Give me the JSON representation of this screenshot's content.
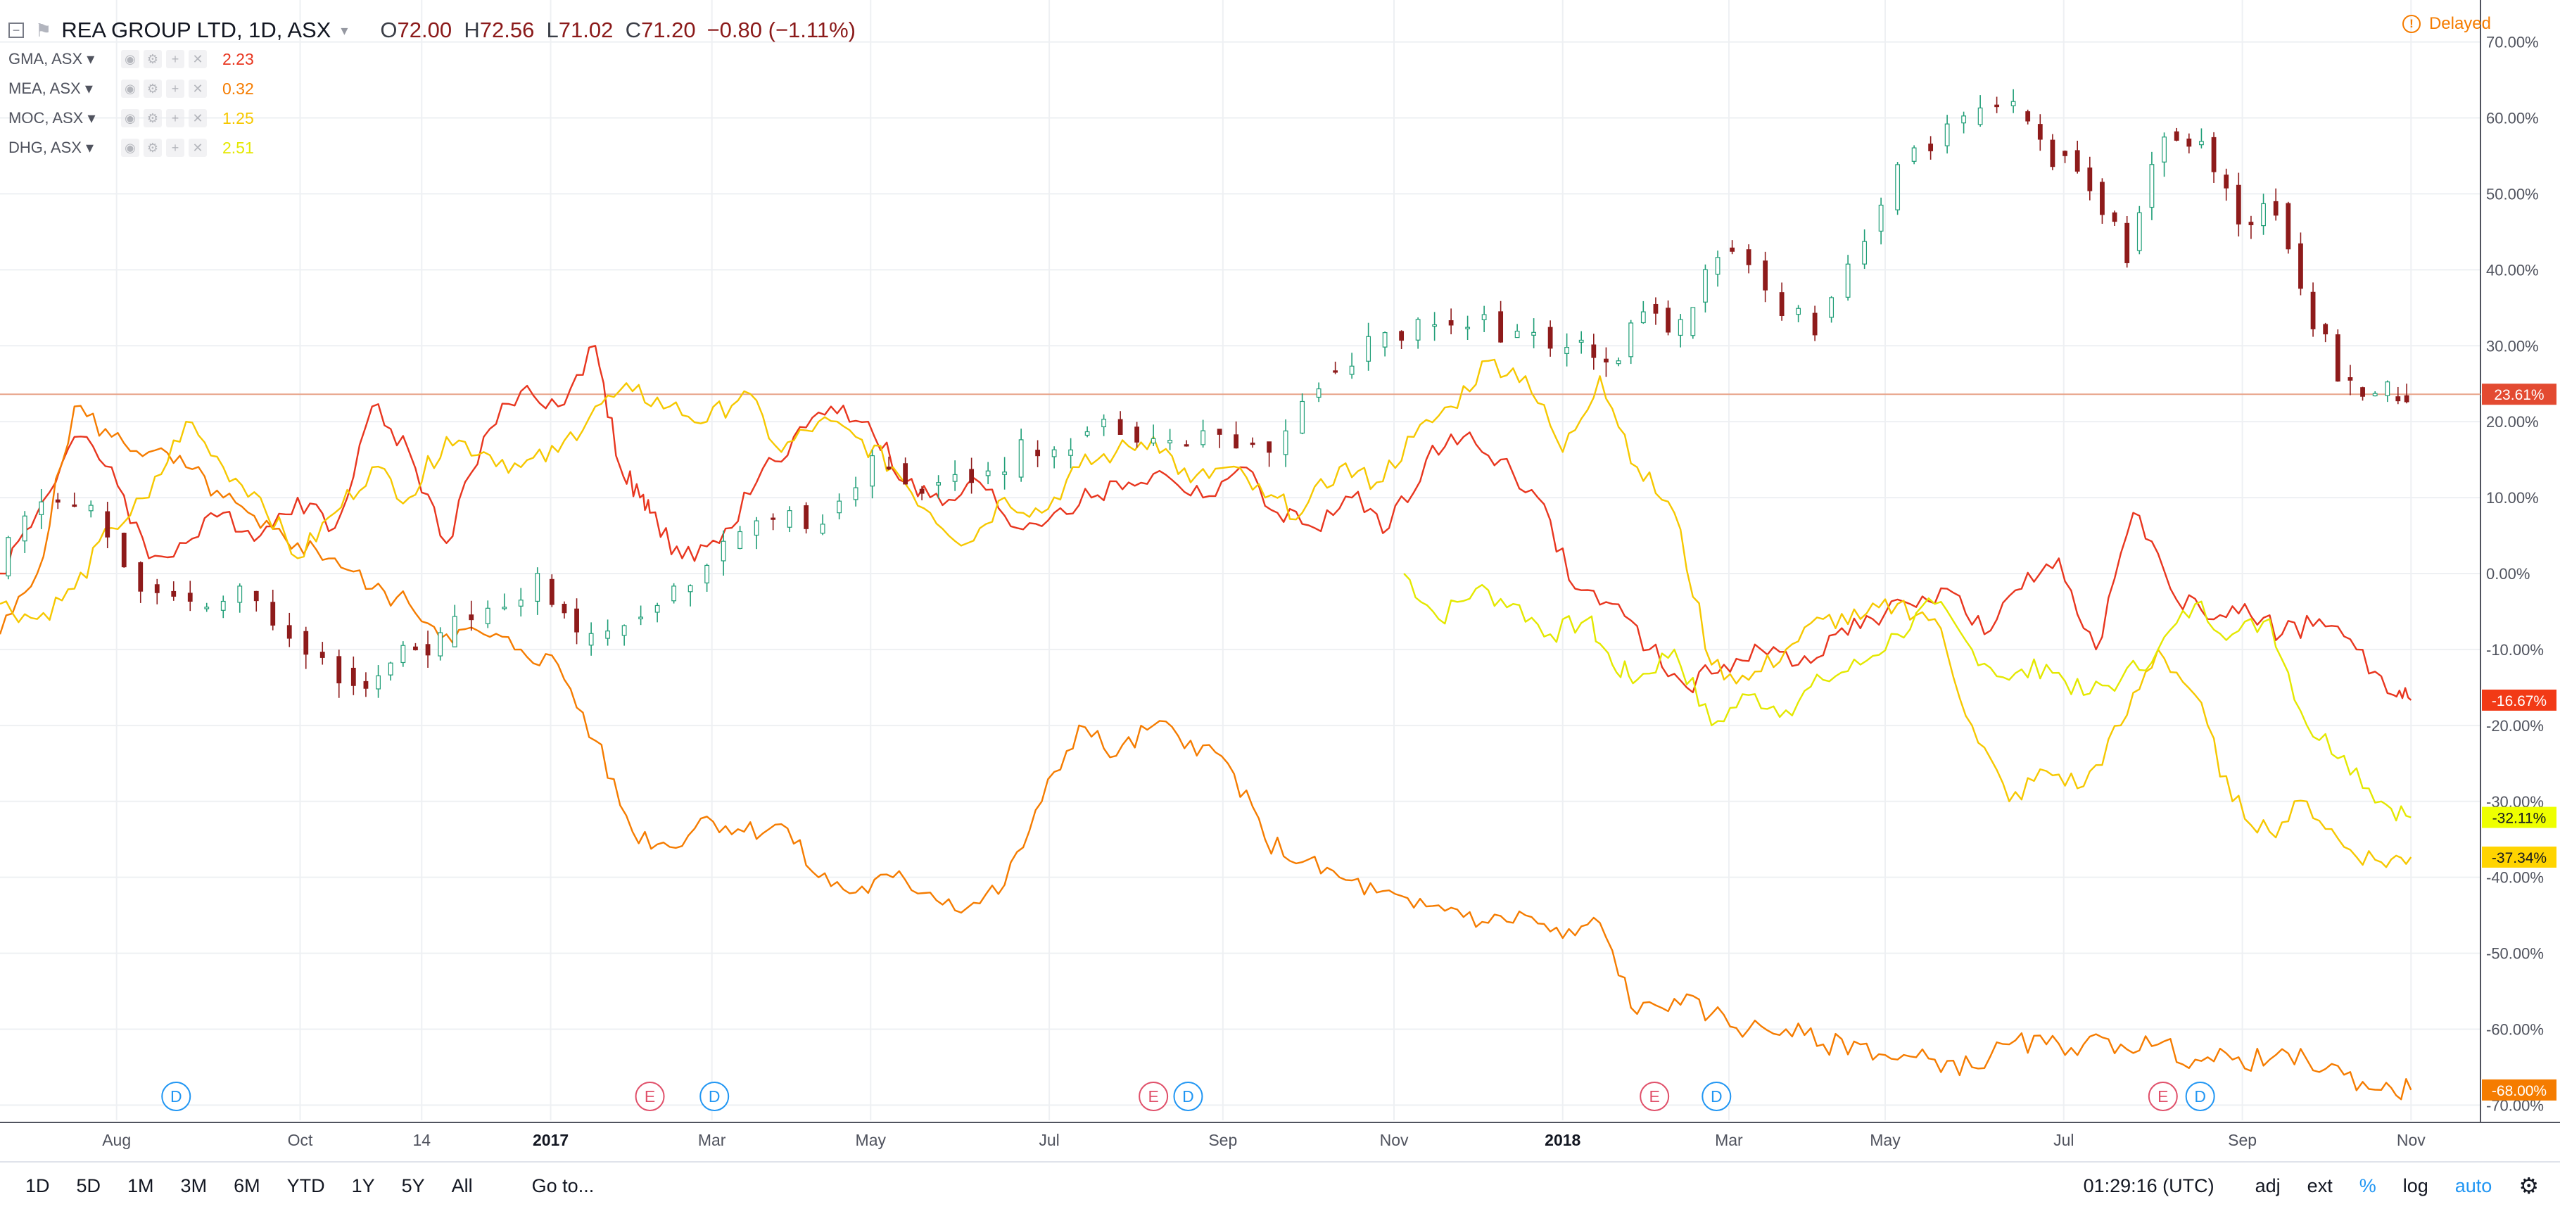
{
  "header": {
    "symbol": "REA GROUP LTD, 1D, ASX",
    "ohlc": {
      "o_label": "O",
      "o": "72.00",
      "h_label": "H",
      "h": "72.56",
      "l_label": "L",
      "l": "71.02",
      "c_label": "C",
      "c": "71.20"
    },
    "change": "−0.80 (−1.11%)",
    "delayed": "Delayed"
  },
  "legend": [
    {
      "symbol": "GMA, ASX",
      "value": "2.23",
      "color": "#e8361f"
    },
    {
      "symbol": "MEA, ASX",
      "value": "0.32",
      "color": "#f57c00"
    },
    {
      "symbol": "MOC, ASX",
      "value": "1.25",
      "color": "#f6c800"
    },
    {
      "symbol": "DHG, ASX",
      "value": "2.51",
      "color": "#e4e800"
    }
  ],
  "price_badges": [
    {
      "label": "23.61%",
      "value": 23.61,
      "bg": "#e34a31",
      "fg": "#ffffff"
    },
    {
      "label": "-16.67%",
      "value": -16.67,
      "bg": "#f23a16",
      "fg": "#ffffff"
    },
    {
      "label": "-32.11%",
      "value": -32.11,
      "bg": "#eeff00",
      "fg": "#131722"
    },
    {
      "label": "-37.34%",
      "value": -37.34,
      "bg": "#ffd400",
      "fg": "#131722"
    },
    {
      "label": "-68.00%",
      "value": -68.0,
      "bg": "#f57c00",
      "fg": "#ffffff"
    }
  ],
  "events": [
    {
      "t": 0.071,
      "letter": "D",
      "color": "#2196f3"
    },
    {
      "t": 0.262,
      "letter": "E",
      "color": "#e0506a"
    },
    {
      "t": 0.288,
      "letter": "D",
      "color": "#2196f3"
    },
    {
      "t": 0.465,
      "letter": "E",
      "color": "#e0506a"
    },
    {
      "t": 0.479,
      "letter": "D",
      "color": "#2196f3"
    },
    {
      "t": 0.667,
      "letter": "E",
      "color": "#e0506a"
    },
    {
      "t": 0.692,
      "letter": "D",
      "color": "#2196f3"
    },
    {
      "t": 0.872,
      "letter": "E",
      "color": "#e0506a"
    },
    {
      "t": 0.887,
      "letter": "D",
      "color": "#2196f3"
    }
  ],
  "bottom_bar": {
    "ranges": [
      "1D",
      "5D",
      "1M",
      "3M",
      "6M",
      "YTD",
      "1Y",
      "5Y",
      "All"
    ],
    "goto": "Go to...",
    "clock": "01:29:16 (UTC)",
    "adj": "adj",
    "ext": "ext",
    "percent": "%",
    "log": "log",
    "auto": "auto"
  },
  "chart_data": {
    "type": "line",
    "title": "REA GROUP LTD, 1D, ASX",
    "y_unit": "%",
    "ylim": [
      -72,
      72
    ],
    "y_ticks": [
      "70.00%",
      "60.00%",
      "50.00%",
      "40.00%",
      "30.00%",
      "20.00%",
      "10.00%",
      "0.00%",
      "-10.00%",
      "-20.00%",
      "-30.00%",
      "-40.00%",
      "-50.00%",
      "-60.00%",
      "-70.00%"
    ],
    "x_ticks": [
      {
        "label": "Aug",
        "t": 0.047,
        "bold": false
      },
      {
        "label": "Oct",
        "t": 0.121,
        "bold": false
      },
      {
        "label": "14",
        "t": 0.17,
        "bold": false
      },
      {
        "label": "2017",
        "t": 0.222,
        "bold": true
      },
      {
        "label": "Mar",
        "t": 0.287,
        "bold": false
      },
      {
        "label": "May",
        "t": 0.351,
        "bold": false
      },
      {
        "label": "Jul",
        "t": 0.423,
        "bold": false
      },
      {
        "label": "Sep",
        "t": 0.493,
        "bold": false
      },
      {
        "label": "Nov",
        "t": 0.562,
        "bold": false
      },
      {
        "label": "2018",
        "t": 0.63,
        "bold": true
      },
      {
        "label": "Mar",
        "t": 0.697,
        "bold": false
      },
      {
        "label": "May",
        "t": 0.76,
        "bold": false
      },
      {
        "label": "Jul",
        "t": 0.832,
        "bold": false
      },
      {
        "label": "Sep",
        "t": 0.904,
        "bold": false
      },
      {
        "label": "Nov",
        "t": 0.972,
        "bold": false
      }
    ],
    "series": [
      {
        "name": "REA GROUP LTD",
        "type": "candlestick",
        "up_color": "#1f9e77",
        "down_color": "#8e1b1b",
        "t": [
          0.0,
          0.02,
          0.04,
          0.06,
          0.08,
          0.1,
          0.12,
          0.14,
          0.155,
          0.165,
          0.18,
          0.2,
          0.22,
          0.235,
          0.255,
          0.275,
          0.295,
          0.315,
          0.335,
          0.355,
          0.375,
          0.395,
          0.415,
          0.435,
          0.455,
          0.475,
          0.495,
          0.515,
          0.535,
          0.555,
          0.575,
          0.595,
          0.615,
          0.635,
          0.65,
          0.665,
          0.68,
          0.695,
          0.715,
          0.735,
          0.755,
          0.775,
          0.795,
          0.815,
          0.83,
          0.845,
          0.86,
          0.875,
          0.89,
          0.905,
          0.92,
          0.935,
          0.95,
          0.965,
          0.972
        ],
        "values": [
          0,
          10,
          8,
          -2,
          -5,
          -3,
          -7,
          -13,
          -14,
          -10,
          -9,
          -4,
          -1,
          -9,
          -6,
          -2,
          4,
          6,
          8,
          14,
          12,
          13,
          16,
          18,
          20,
          17,
          18,
          16,
          26,
          30,
          33,
          34,
          31,
          30,
          27,
          35,
          32,
          43,
          37,
          33,
          45,
          56,
          59,
          61,
          55,
          51,
          42,
          58,
          57,
          47,
          48,
          33,
          24,
          24,
          23.61
        ]
      },
      {
        "name": "GMA, ASX",
        "type": "line",
        "color": "#e8361f",
        "t": [
          0.0,
          0.015,
          0.03,
          0.045,
          0.06,
          0.075,
          0.09,
          0.105,
          0.12,
          0.135,
          0.15,
          0.165,
          0.18,
          0.195,
          0.21,
          0.225,
          0.24,
          0.25,
          0.258,
          0.262,
          0.275,
          0.29,
          0.305,
          0.32,
          0.335,
          0.35,
          0.365,
          0.38,
          0.395,
          0.41,
          0.425,
          0.44,
          0.455,
          0.47,
          0.485,
          0.5,
          0.515,
          0.53,
          0.545,
          0.56,
          0.575,
          0.59,
          0.605,
          0.62,
          0.635,
          0.65,
          0.665,
          0.68,
          0.695,
          0.71,
          0.725,
          0.74,
          0.755,
          0.77,
          0.785,
          0.8,
          0.815,
          0.83,
          0.845,
          0.86,
          0.875,
          0.89,
          0.905,
          0.92,
          0.935,
          0.95,
          0.965,
          0.972
        ],
        "values": [
          0,
          8,
          18,
          14,
          2,
          4,
          8,
          5,
          10,
          6,
          22,
          16,
          4,
          18,
          24,
          22,
          30,
          14,
          10,
          8,
          2,
          4,
          12,
          18,
          22,
          20,
          12,
          9,
          12,
          6,
          8,
          10,
          12,
          13,
          10,
          14,
          8,
          6,
          10,
          6,
          15,
          18,
          15,
          10,
          -2,
          -4,
          -10,
          -15,
          -12,
          -10,
          -12,
          -8,
          -6,
          -4,
          -2,
          -8,
          -2,
          2,
          -10,
          8,
          -2,
          -6,
          -4,
          -8,
          -6,
          -10,
          -16,
          -16.67
        ]
      },
      {
        "name": "MEA, ASX",
        "type": "line",
        "color": "#f57c00",
        "t": [
          0.0,
          0.015,
          0.03,
          0.045,
          0.06,
          0.075,
          0.09,
          0.105,
          0.12,
          0.135,
          0.15,
          0.165,
          0.18,
          0.195,
          0.21,
          0.225,
          0.24,
          0.255,
          0.27,
          0.285,
          0.3,
          0.315,
          0.33,
          0.345,
          0.36,
          0.375,
          0.39,
          0.405,
          0.42,
          0.435,
          0.45,
          0.465,
          0.48,
          0.495,
          0.51,
          0.525,
          0.54,
          0.555,
          0.57,
          0.585,
          0.6,
          0.615,
          0.63,
          0.645,
          0.66,
          0.675,
          0.69,
          0.705,
          0.72,
          0.735,
          0.75,
          0.765,
          0.78,
          0.795,
          0.81,
          0.825,
          0.84,
          0.855,
          0.87,
          0.885,
          0.9,
          0.915,
          0.93,
          0.945,
          0.96,
          0.972
        ],
        "values": [
          -8,
          0,
          22,
          18,
          16,
          14,
          10,
          6,
          4,
          2,
          -2,
          -4,
          -8,
          -8,
          -10,
          -12,
          -22,
          -34,
          -36,
          -32,
          -34,
          -33,
          -40,
          -42,
          -40,
          -42,
          -44,
          -41,
          -30,
          -20,
          -24,
          -20,
          -22,
          -25,
          -35,
          -38,
          -40,
          -42,
          -44,
          -44,
          -46,
          -45,
          -48,
          -46,
          -58,
          -56,
          -58,
          -60,
          -60,
          -62,
          -62,
          -64,
          -64,
          -65,
          -62,
          -62,
          -62,
          -62,
          -62,
          -64,
          -64,
          -64,
          -64,
          -66,
          -68,
          -68.0
        ]
      },
      {
        "name": "MOC, ASX",
        "type": "line",
        "color": "#f6c800",
        "t": [
          0.0,
          0.015,
          0.03,
          0.045,
          0.06,
          0.075,
          0.09,
          0.105,
          0.12,
          0.135,
          0.15,
          0.165,
          0.18,
          0.195,
          0.21,
          0.225,
          0.24,
          0.255,
          0.27,
          0.285,
          0.3,
          0.315,
          0.33,
          0.345,
          0.36,
          0.375,
          0.39,
          0.405,
          0.42,
          0.435,
          0.45,
          0.465,
          0.48,
          0.495,
          0.51,
          0.525,
          0.54,
          0.555,
          0.57,
          0.585,
          0.6,
          0.615,
          0.63,
          0.645,
          0.66,
          0.675,
          0.69,
          0.705,
          0.72,
          0.735,
          0.75,
          0.765,
          0.78,
          0.795,
          0.81,
          0.825,
          0.84,
          0.855,
          0.87,
          0.885,
          0.9,
          0.915,
          0.93,
          0.945,
          0.96,
          0.972
        ],
        "values": [
          -4,
          -6,
          -2,
          6,
          10,
          20,
          14,
          10,
          2,
          8,
          14,
          10,
          18,
          16,
          14,
          16,
          22,
          24,
          22,
          20,
          24,
          16,
          20,
          18,
          14,
          8,
          4,
          10,
          8,
          14,
          16,
          18,
          12,
          14,
          10,
          8,
          14,
          12,
          18,
          22,
          28,
          26,
          16,
          26,
          14,
          8,
          -12,
          -14,
          -10,
          -6,
          -6,
          -4,
          -6,
          -20,
          -30,
          -26,
          -28,
          -20,
          -10,
          -16,
          -30,
          -34,
          -30,
          -36,
          -38,
          -37.34
        ]
      },
      {
        "name": "DHG, ASX",
        "type": "line",
        "color": "#e4e800",
        "t": [
          0.566,
          0.58,
          0.595,
          0.61,
          0.625,
          0.64,
          0.65,
          0.66,
          0.675,
          0.69,
          0.705,
          0.72,
          0.735,
          0.75,
          0.765,
          0.78,
          0.795,
          0.81,
          0.825,
          0.84,
          0.855,
          0.87,
          0.885,
          0.9,
          0.915,
          0.93,
          0.945,
          0.96,
          0.972
        ],
        "values": [
          0,
          -6,
          -2,
          -4,
          -8,
          -6,
          -12,
          -14,
          -10,
          -20,
          -16,
          -18,
          -14,
          -12,
          -8,
          -4,
          -10,
          -14,
          -12,
          -16,
          -14,
          -10,
          -4,
          -8,
          -6,
          -20,
          -24,
          -30,
          -32.11
        ]
      }
    ]
  }
}
